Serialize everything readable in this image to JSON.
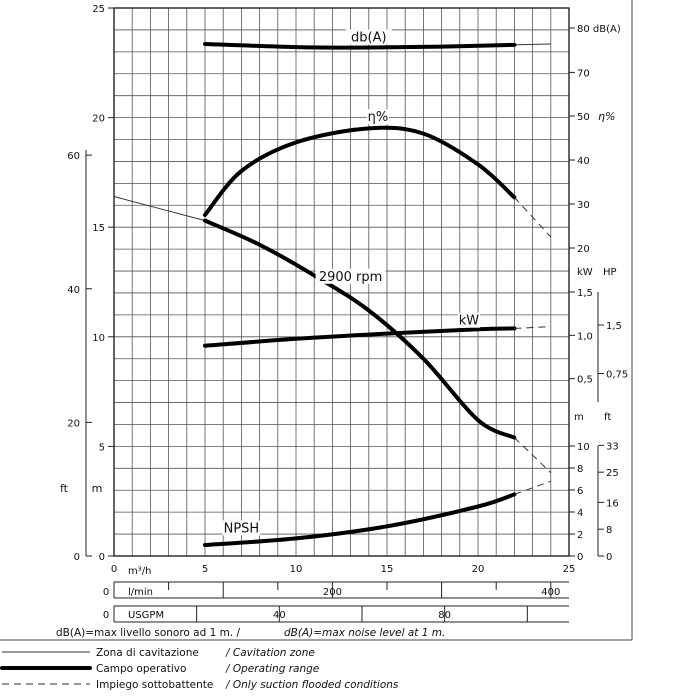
{
  "chart_data": {
    "type": "line",
    "x": {
      "range": [
        0,
        25
      ],
      "ticks": [
        "0",
        "5",
        "10",
        "15",
        "20",
        "25"
      ],
      "unit": "m³/h"
    },
    "x_lmin": {
      "ticks": [
        "0",
        "200",
        "400"
      ],
      "unit": "l/min",
      "values": [
        0,
        200,
        400
      ]
    },
    "x_usgpm": {
      "ticks": [
        "0",
        "40",
        "80"
      ],
      "unit": "USGPM",
      "values": [
        0,
        40,
        80
      ]
    },
    "head_m": {
      "range": [
        0,
        25
      ],
      "ticks": [
        "0",
        "5",
        "10",
        "15",
        "20",
        "25"
      ],
      "unit": "m"
    },
    "head_ft": {
      "ticks": [
        "0",
        "20",
        "40",
        "60"
      ],
      "values": [
        0,
        20,
        40,
        60
      ],
      "unit": "ft"
    },
    "db": {
      "range": [
        60,
        80
      ],
      "ticks": [
        "70",
        "80 dB(A)"
      ],
      "values": [
        70,
        80
      ]
    },
    "eff": {
      "range": [
        20,
        50
      ],
      "ticks": [
        "20",
        "30",
        "40",
        "50"
      ],
      "values": [
        20,
        30,
        40,
        50
      ],
      "label": "η%"
    },
    "kw": {
      "range": [
        0,
        1.5
      ],
      "ticks": [
        "0,5",
        "1,0",
        "1,5"
      ],
      "values": [
        0.5,
        1.0,
        1.5
      ],
      "unit_kw": "kW",
      "unit_hp": "HP",
      "hp_ticks": [
        "0,75",
        "1,5"
      ],
      "hp_values": [
        0.75,
        1.5
      ]
    },
    "npsh": {
      "range": [
        0,
        10
      ],
      "ticks": [
        "0",
        "2",
        "4",
        "6",
        "8",
        "10"
      ],
      "values": [
        0,
        2,
        4,
        6,
        8,
        10
      ],
      "unit_m": "m",
      "unit_ft": "ft",
      "ft_ticks": [
        "0",
        "8",
        "16",
        "25",
        "33"
      ],
      "ft_values": [
        0,
        8,
        16,
        25,
        33
      ]
    },
    "series": [
      {
        "name": "2900 rpm",
        "axis": "head_m",
        "label_at": 13,
        "cavitation": {
          "x": [
            0,
            5
          ],
          "y": [
            16.4,
            15.3
          ]
        },
        "operating": {
          "x": [
            5,
            8,
            11,
            14,
            17,
            20,
            22
          ],
          "y": [
            15.3,
            14.2,
            12.8,
            11.2,
            9.0,
            6.2,
            5.4
          ]
        },
        "flooded": {
          "x": [
            22,
            24
          ],
          "y": [
            5.4,
            3.8
          ]
        }
      },
      {
        "name": "η%",
        "axis": "eff",
        "label_at": 14.5,
        "operating": {
          "x": [
            5,
            7,
            10,
            14,
            17,
            20,
            22
          ],
          "y": [
            27.5,
            37.5,
            44,
            47.2,
            46,
            39,
            31.5
          ]
        },
        "flooded": {
          "x": [
            22,
            24
          ],
          "y": [
            31.5,
            22.5
          ]
        }
      },
      {
        "name": "db(A)",
        "axis": "db",
        "label_at": 14,
        "operating": {
          "x": [
            5,
            10,
            14,
            18,
            22
          ],
          "y": [
            76.4,
            75.7,
            75.6,
            75.8,
            76.2
          ]
        },
        "cavitation": {
          "x": [
            22,
            24
          ],
          "y": [
            76.2,
            76.4
          ]
        }
      },
      {
        "name": "kW",
        "axis": "kw",
        "label_at": 19.5,
        "operating": {
          "x": [
            5,
            10,
            15,
            20,
            22
          ],
          "y": [
            0.88,
            0.96,
            1.02,
            1.07,
            1.08
          ]
        },
        "flooded": {
          "x": [
            22,
            24
          ],
          "y": [
            1.08,
            1.1
          ]
        }
      },
      {
        "name": "NPSH",
        "axis": "npsh",
        "label_at": 7,
        "operating": {
          "x": [
            5,
            10,
            15,
            20,
            22
          ],
          "y": [
            1.0,
            1.6,
            2.7,
            4.5,
            5.6
          ]
        },
        "flooded": {
          "x": [
            22,
            24
          ],
          "y": [
            5.6,
            6.8
          ]
        }
      }
    ],
    "footnote": {
      "it": "dB(A)=max livello sonoro ad 1 m.  /",
      "en": "dB(A)=max noise level at 1 m."
    },
    "legend": [
      {
        "style": "cavitation",
        "it": "Zona di cavitazione",
        "en": "/ Cavitation zone"
      },
      {
        "style": "operating",
        "it": "Campo operativo",
        "en": "/ Operating range"
      },
      {
        "style": "flooded",
        "it": "Impiego sottobattente",
        "en": "/ Only suction flooded conditions"
      }
    ],
    "grid": true
  }
}
